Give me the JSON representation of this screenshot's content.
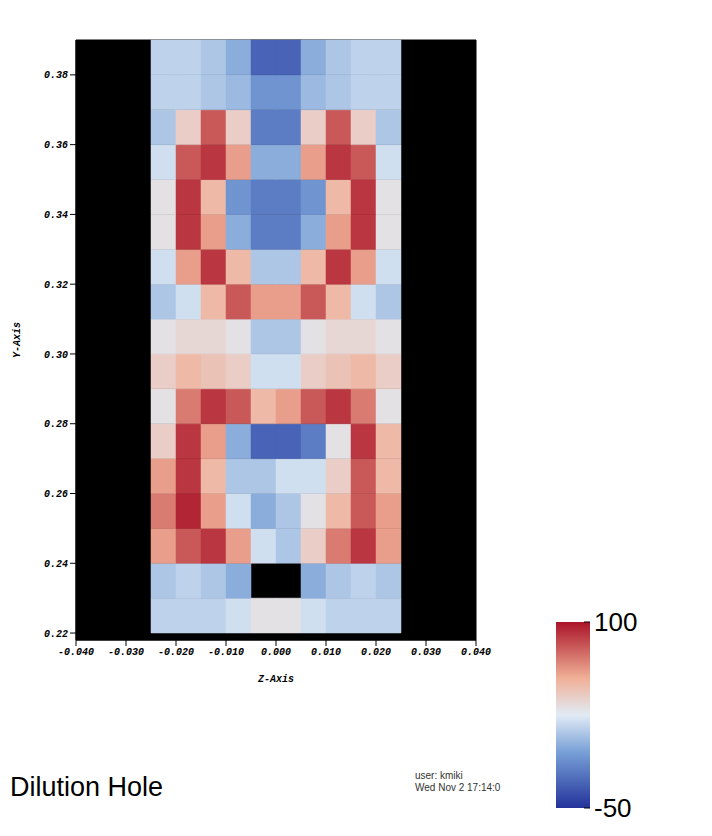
{
  "chart_data": {
    "type": "heatmap",
    "title": "Dilution Hole",
    "x_label": "Z-Axis",
    "y_label": "Y-Axis",
    "x_edges": [
      -0.025,
      -0.02,
      -0.015,
      -0.01,
      -0.005,
      0,
      0.005,
      0.01,
      0.015,
      0.02,
      0.025
    ],
    "y_edges": [
      0.22,
      0.23,
      0.24,
      0.25,
      0.26,
      0.27,
      0.28,
      0.29,
      0.3,
      0.31,
      0.32,
      0.33,
      0.34,
      0.35,
      0.36,
      0.37,
      0.38,
      0.39
    ],
    "values": [
      [
        15,
        15,
        15,
        20,
        30,
        30,
        20,
        15,
        15,
        15
      ],
      [
        10,
        15,
        10,
        0,
        null,
        null,
        0,
        10,
        15,
        10
      ],
      [
        60,
        80,
        90,
        60,
        20,
        10,
        40,
        70,
        90,
        60
      ],
      [
        70,
        95,
        60,
        20,
        0,
        10,
        30,
        50,
        80,
        60
      ],
      [
        60,
        90,
        50,
        10,
        10,
        20,
        20,
        40,
        80,
        50
      ],
      [
        40,
        90,
        60,
        0,
        -30,
        -30,
        -20,
        30,
        90,
        50
      ],
      [
        30,
        70,
        90,
        80,
        50,
        60,
        80,
        90,
        70,
        30
      ],
      [
        40,
        50,
        45,
        40,
        20,
        20,
        40,
        45,
        50,
        40
      ],
      [
        30,
        35,
        35,
        30,
        10,
        10,
        30,
        35,
        35,
        30
      ],
      [
        10,
        20,
        50,
        80,
        60,
        60,
        80,
        50,
        20,
        10
      ],
      [
        20,
        60,
        90,
        50,
        10,
        10,
        50,
        90,
        60,
        20
      ],
      [
        30,
        90,
        60,
        0,
        -20,
        -20,
        0,
        60,
        90,
        30
      ],
      [
        30,
        90,
        50,
        -10,
        -20,
        -20,
        -10,
        50,
        90,
        30
      ],
      [
        20,
        80,
        90,
        60,
        0,
        0,
        60,
        90,
        80,
        20
      ],
      [
        10,
        40,
        80,
        40,
        -20,
        -20,
        40,
        80,
        40,
        10
      ],
      [
        15,
        15,
        10,
        5,
        -10,
        -10,
        5,
        10,
        15,
        15
      ],
      [
        15,
        15,
        10,
        0,
        -30,
        -30,
        0,
        10,
        15,
        15
      ]
    ],
    "xlim": [
      -0.04,
      0.04
    ],
    "xticks": [
      {
        "value": -0.04,
        "label": "-0.040"
      },
      {
        "value": -0.03,
        "label": "-0.030"
      },
      {
        "value": -0.02,
        "label": "-0.020"
      },
      {
        "value": -0.01,
        "label": "-0.010"
      },
      {
        "value": 0,
        "label": "0.000"
      },
      {
        "value": 0.01,
        "label": "0.010"
      },
      {
        "value": 0.02,
        "label": "0.020"
      },
      {
        "value": 0.03,
        "label": "0.030"
      },
      {
        "value": 0.04,
        "label": "0.040"
      }
    ],
    "ylim": [
      0.218,
      0.39
    ],
    "yticks": [
      0.22,
      0.24,
      0.26,
      0.28,
      {
        "value": 0.3,
        "label": "0.30"
      },
      0.32,
      0.34,
      0.36,
      0.38
    ],
    "colorbar": {
      "range": [
        -50,
        100
      ],
      "ticks": [
        -50,
        100
      ]
    },
    "annotations": [
      "user: kmiki",
      "Wed Nov 2 17:14:0"
    ]
  }
}
